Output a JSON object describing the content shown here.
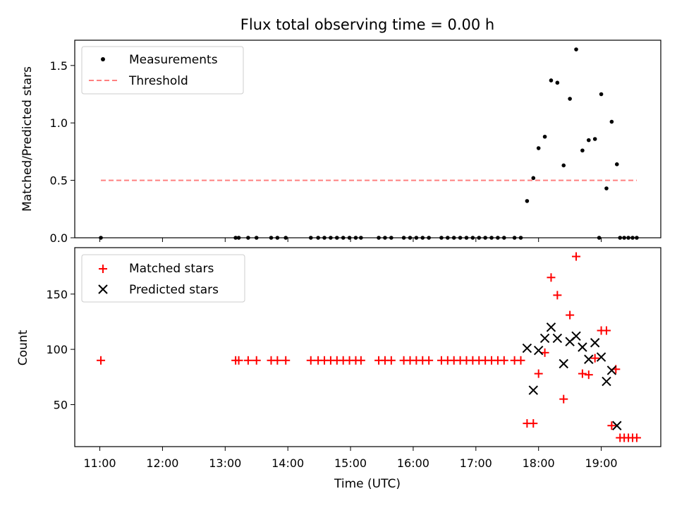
{
  "chart_data": [
    {
      "type": "scatter",
      "title": "Flux total observing time = 0.00 h",
      "xlabel": "",
      "ylabel": "Matched/Predicted stars",
      "ylim": [
        0,
        1.72
      ],
      "xlim": [
        "10:36",
        "19:57"
      ],
      "y_ticks": [
        "0.0",
        "0.5",
        "1.0",
        "1.5"
      ],
      "y_tick_values": [
        0,
        0.5,
        1.0,
        1.5
      ],
      "x_tick_values": [
        "11:00",
        "12:00",
        "13:00",
        "14:00",
        "15:00",
        "16:00",
        "17:00",
        "18:00",
        "19:00"
      ],
      "legend_position": "top-left",
      "series": [
        {
          "name": "Measurements",
          "marker": "dot",
          "color": "#000000",
          "points": [
            [
              "11:01",
              0
            ],
            [
              "13:10",
              0
            ],
            [
              "13:13",
              0
            ],
            [
              "13:22",
              0
            ],
            [
              "13:30",
              0
            ],
            [
              "13:44",
              0
            ],
            [
              "13:50",
              0
            ],
            [
              "13:58",
              0
            ],
            [
              "14:22",
              0
            ],
            [
              "14:29",
              0
            ],
            [
              "14:35",
              0
            ],
            [
              "14:41",
              0
            ],
            [
              "14:47",
              0
            ],
            [
              "14:53",
              0
            ],
            [
              "14:59",
              0
            ],
            [
              "15:05",
              0
            ],
            [
              "15:10",
              0
            ],
            [
              "15:27",
              0
            ],
            [
              "15:33",
              0
            ],
            [
              "15:39",
              0
            ],
            [
              "15:51",
              0
            ],
            [
              "15:57",
              0
            ],
            [
              "16:03",
              0
            ],
            [
              "16:09",
              0
            ],
            [
              "16:15",
              0
            ],
            [
              "16:27",
              0
            ],
            [
              "16:33",
              0
            ],
            [
              "16:39",
              0
            ],
            [
              "16:45",
              0
            ],
            [
              "16:51",
              0
            ],
            [
              "16:57",
              0
            ],
            [
              "17:03",
              0
            ],
            [
              "17:09",
              0
            ],
            [
              "17:15",
              0
            ],
            [
              "17:21",
              0
            ],
            [
              "17:27",
              0
            ],
            [
              "17:37",
              0
            ],
            [
              "17:43",
              0
            ],
            [
              "17:49",
              0.32
            ],
            [
              "17:55",
              0.52
            ],
            [
              "18:00",
              0.78
            ],
            [
              "18:06",
              0.88
            ],
            [
              "18:12",
              1.37
            ],
            [
              "18:18",
              1.35
            ],
            [
              "18:24",
              0.63
            ],
            [
              "18:30",
              1.21
            ],
            [
              "18:36",
              1.64
            ],
            [
              "18:42",
              0.76
            ],
            [
              "18:48",
              0.85
            ],
            [
              "18:54",
              0.86
            ],
            [
              "19:00",
              1.25
            ],
            [
              "18:58",
              0
            ],
            [
              "19:05",
              0.43
            ],
            [
              "19:10",
              1.01
            ],
            [
              "19:15",
              0.64
            ],
            [
              "19:18",
              0
            ],
            [
              "19:22",
              0
            ],
            [
              "19:26",
              0
            ],
            [
              "19:30",
              0
            ],
            [
              "19:34",
              0
            ]
          ]
        },
        {
          "name": "Threshold",
          "marker": "dashed-line",
          "color": "#ff8080",
          "points": [
            [
              "11:01",
              0.5
            ],
            [
              "19:34",
              0.5
            ]
          ]
        }
      ]
    },
    {
      "type": "scatter",
      "title": "",
      "xlabel": "Time (UTC)",
      "ylabel": "Count",
      "ylim": [
        12,
        192
      ],
      "xlim": [
        "10:36",
        "19:57"
      ],
      "y_ticks": [
        "50",
        "100",
        "150"
      ],
      "y_tick_values": [
        50,
        100,
        150
      ],
      "x_ticks": [
        "11:00",
        "12:00",
        "13:00",
        "14:00",
        "15:00",
        "16:00",
        "17:00",
        "18:00",
        "19:00"
      ],
      "legend_position": "top-left",
      "series": [
        {
          "name": "Matched stars",
          "marker": "plus",
          "color": "#ff0000",
          "points": [
            [
              "11:01",
              90
            ],
            [
              "13:10",
              90
            ],
            [
              "13:13",
              90
            ],
            [
              "13:22",
              90
            ],
            [
              "13:30",
              90
            ],
            [
              "13:44",
              90
            ],
            [
              "13:50",
              90
            ],
            [
              "13:58",
              90
            ],
            [
              "14:22",
              90
            ],
            [
              "14:29",
              90
            ],
            [
              "14:35",
              90
            ],
            [
              "14:41",
              90
            ],
            [
              "14:47",
              90
            ],
            [
              "14:53",
              90
            ],
            [
              "14:59",
              90
            ],
            [
              "15:05",
              90
            ],
            [
              "15:10",
              90
            ],
            [
              "15:27",
              90
            ],
            [
              "15:33",
              90
            ],
            [
              "15:39",
              90
            ],
            [
              "15:51",
              90
            ],
            [
              "15:57",
              90
            ],
            [
              "16:03",
              90
            ],
            [
              "16:09",
              90
            ],
            [
              "16:15",
              90
            ],
            [
              "16:27",
              90
            ],
            [
              "16:33",
              90
            ],
            [
              "16:39",
              90
            ],
            [
              "16:45",
              90
            ],
            [
              "16:51",
              90
            ],
            [
              "16:57",
              90
            ],
            [
              "17:03",
              90
            ],
            [
              "17:09",
              90
            ],
            [
              "17:15",
              90
            ],
            [
              "17:21",
              90
            ],
            [
              "17:27",
              90
            ],
            [
              "17:37",
              90
            ],
            [
              "17:43",
              90
            ],
            [
              "17:49",
              33
            ],
            [
              "17:55",
              33
            ],
            [
              "18:00",
              78
            ],
            [
              "18:06",
              97
            ],
            [
              "18:12",
              165
            ],
            [
              "18:18",
              149
            ],
            [
              "18:24",
              55
            ],
            [
              "18:30",
              131
            ],
            [
              "18:36",
              184
            ],
            [
              "18:42",
              78
            ],
            [
              "18:48",
              77
            ],
            [
              "18:54",
              92
            ],
            [
              "19:00",
              117
            ],
            [
              "19:05",
              117
            ],
            [
              "19:10",
              31
            ],
            [
              "19:14",
              82
            ],
            [
              "19:18",
              20
            ],
            [
              "19:22",
              20
            ],
            [
              "19:26",
              20
            ],
            [
              "19:30",
              20
            ],
            [
              "19:34",
              20
            ]
          ]
        },
        {
          "name": "Predicted stars",
          "marker": "x",
          "color": "#000000",
          "points": [
            [
              "17:49",
              101
            ],
            [
              "17:55",
              63
            ],
            [
              "18:00",
              99
            ],
            [
              "18:06",
              110
            ],
            [
              "18:12",
              120
            ],
            [
              "18:18",
              110
            ],
            [
              "18:24",
              87
            ],
            [
              "18:30",
              107
            ],
            [
              "18:36",
              112
            ],
            [
              "18:42",
              102
            ],
            [
              "18:48",
              91
            ],
            [
              "18:54",
              106
            ],
            [
              "19:00",
              93
            ],
            [
              "19:05",
              71
            ],
            [
              "19:10",
              81
            ],
            [
              "19:15",
              31
            ]
          ]
        }
      ]
    }
  ]
}
